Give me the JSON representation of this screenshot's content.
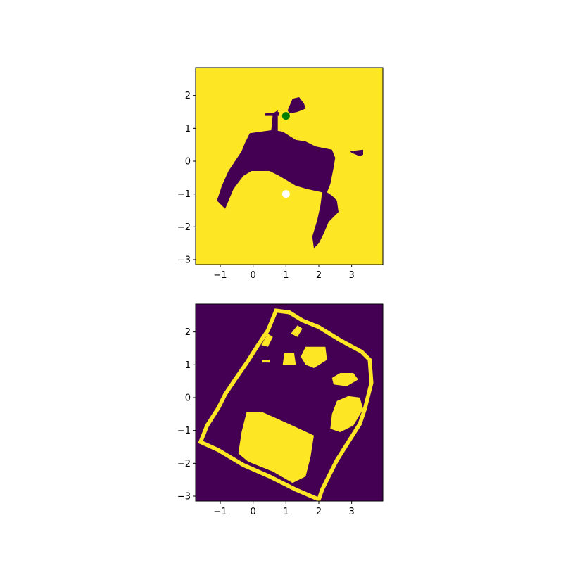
{
  "colors": {
    "viridis_low": "#440154",
    "viridis_high": "#fde725",
    "start_marker": "#ffffff",
    "goal_marker": "#008000",
    "axis": "#000000"
  },
  "chart_data": [
    {
      "type": "heatmap",
      "title": "",
      "xlabel": "",
      "ylabel": "",
      "xlim": [
        -1.75,
        3.95
      ],
      "ylim": [
        -3.15,
        2.85
      ],
      "xticks": [
        -1,
        0,
        1,
        2,
        3
      ],
      "yticks": [
        -3,
        -2,
        -1,
        0,
        1,
        2
      ],
      "xtick_labels": [
        "−1",
        "0",
        "1",
        "2",
        "3"
      ],
      "ytick_labels": [
        "−3",
        "−2",
        "−1",
        "0",
        "1",
        "2"
      ],
      "background_value": 1,
      "regions_value": 0,
      "regions": [
        [
          [
            -1.1,
            -1.2
          ],
          [
            -0.95,
            -0.75
          ],
          [
            -0.75,
            -0.3
          ],
          [
            -0.55,
            0.0
          ],
          [
            -0.35,
            0.3
          ],
          [
            -0.25,
            0.55
          ],
          [
            -0.1,
            0.85
          ],
          [
            0.6,
            0.95
          ],
          [
            0.9,
            0.9
          ],
          [
            1.3,
            0.65
          ],
          [
            1.6,
            0.6
          ],
          [
            1.9,
            0.45
          ],
          [
            2.4,
            0.35
          ],
          [
            2.5,
            0.1
          ],
          [
            2.45,
            -0.2
          ],
          [
            2.35,
            -0.7
          ],
          [
            2.25,
            -0.95
          ],
          [
            2.4,
            -1.05
          ],
          [
            2.55,
            -1.2
          ],
          [
            2.6,
            -1.55
          ],
          [
            2.3,
            -1.85
          ],
          [
            2.15,
            -2.2
          ],
          [
            2.0,
            -2.5
          ],
          [
            1.85,
            -2.65
          ],
          [
            1.8,
            -2.3
          ],
          [
            1.95,
            -1.8
          ],
          [
            2.05,
            -1.35
          ],
          [
            2.1,
            -0.95
          ],
          [
            1.65,
            -0.85
          ],
          [
            1.3,
            -0.75
          ],
          [
            1.05,
            -0.6
          ],
          [
            0.8,
            -0.45
          ],
          [
            0.5,
            -0.3
          ],
          [
            -0.05,
            -0.3
          ],
          [
            -0.3,
            -0.45
          ],
          [
            -0.6,
            -0.85
          ],
          [
            -0.85,
            -1.45
          ]
        ],
        [
          [
            0.55,
            0.9
          ],
          [
            0.6,
            1.45
          ],
          [
            0.75,
            1.55
          ],
          [
            0.75,
            0.9
          ]
        ],
        [
          [
            0.35,
            1.45
          ],
          [
            0.8,
            1.5
          ],
          [
            0.8,
            1.38
          ],
          [
            0.35,
            1.38
          ]
        ],
        [
          [
            1.05,
            1.55
          ],
          [
            1.2,
            1.9
          ],
          [
            1.4,
            1.95
          ],
          [
            1.55,
            1.75
          ],
          [
            1.6,
            1.6
          ],
          [
            1.35,
            1.5
          ],
          [
            1.1,
            1.45
          ]
        ],
        [
          [
            2.95,
            0.3
          ],
          [
            3.35,
            0.35
          ],
          [
            3.35,
            0.2
          ],
          [
            3.25,
            0.15
          ],
          [
            3.0,
            0.25
          ]
        ]
      ],
      "points": [
        {
          "x": 1.0,
          "y": -1.0,
          "color": "#ffffff"
        },
        {
          "x": 1.0,
          "y": 1.38,
          "color": "#008000"
        }
      ]
    },
    {
      "type": "heatmap",
      "title": "",
      "xlabel": "",
      "ylabel": "",
      "xlim": [
        -1.75,
        3.95
      ],
      "ylim": [
        -3.15,
        2.85
      ],
      "xticks": [
        -1,
        0,
        1,
        2,
        3
      ],
      "yticks": [
        -3,
        -2,
        -1,
        0,
        1,
        2
      ],
      "xtick_labels": [
        "−1",
        "0",
        "1",
        "2",
        "3"
      ],
      "ytick_labels": [
        "−3",
        "−2",
        "−1",
        "0",
        "1",
        "2"
      ],
      "background_value": 0,
      "regions_value": 1,
      "outline": {
        "points": [
          [
            0.7,
            2.65
          ],
          [
            1.1,
            2.6
          ],
          [
            1.5,
            2.35
          ],
          [
            2.0,
            2.15
          ],
          [
            2.65,
            1.75
          ],
          [
            3.3,
            1.4
          ],
          [
            3.55,
            1.15
          ],
          [
            3.6,
            0.45
          ],
          [
            3.4,
            -0.35
          ],
          [
            3.25,
            -0.8
          ],
          [
            2.9,
            -1.35
          ],
          [
            2.55,
            -1.9
          ],
          [
            2.3,
            -2.4
          ],
          [
            2.1,
            -2.8
          ],
          [
            2.0,
            -3.1
          ],
          [
            1.3,
            -2.8
          ],
          [
            0.5,
            -2.4
          ],
          [
            -0.3,
            -2.05
          ],
          [
            -1.05,
            -1.6
          ],
          [
            -1.6,
            -1.35
          ],
          [
            -1.4,
            -0.85
          ],
          [
            -1.05,
            -0.3
          ],
          [
            -0.85,
            0.1
          ],
          [
            -0.55,
            0.55
          ],
          [
            -0.2,
            1.05
          ],
          [
            0.15,
            1.6
          ],
          [
            0.45,
            2.05
          ],
          [
            0.7,
            2.65
          ]
        ],
        "width": 0.12
      },
      "regions": [
        [
          [
            -0.2,
            -0.45
          ],
          [
            0.3,
            -0.45
          ],
          [
            0.75,
            -0.65
          ],
          [
            1.2,
            -0.85
          ],
          [
            1.85,
            -1.15
          ],
          [
            1.75,
            -1.8
          ],
          [
            1.6,
            -2.4
          ],
          [
            1.2,
            -2.6
          ],
          [
            0.6,
            -2.25
          ],
          [
            -0.15,
            -1.95
          ],
          [
            -0.45,
            -1.7
          ],
          [
            -0.35,
            -1.05
          ]
        ],
        [
          [
            2.55,
            -0.1
          ],
          [
            2.9,
            0.05
          ],
          [
            3.25,
            0.0
          ],
          [
            3.35,
            -0.35
          ],
          [
            3.05,
            -0.85
          ],
          [
            2.65,
            -1.05
          ],
          [
            2.35,
            -0.95
          ],
          [
            2.4,
            -0.5
          ]
        ],
        [
          [
            2.4,
            0.6
          ],
          [
            2.65,
            0.75
          ],
          [
            3.05,
            0.75
          ],
          [
            3.2,
            0.55
          ],
          [
            2.85,
            0.35
          ],
          [
            2.45,
            0.4
          ]
        ],
        [
          [
            1.45,
            1.25
          ],
          [
            1.6,
            1.55
          ],
          [
            2.2,
            1.55
          ],
          [
            2.25,
            1.15
          ],
          [
            1.85,
            0.9
          ],
          [
            1.6,
            1.0
          ]
        ],
        [
          [
            0.9,
            1.0
          ],
          [
            0.95,
            1.35
          ],
          [
            1.25,
            1.35
          ],
          [
            1.3,
            1.0
          ]
        ],
        [
          [
            0.28,
            1.07
          ],
          [
            0.5,
            1.07
          ],
          [
            0.5,
            1.15
          ],
          [
            0.28,
            1.15
          ]
        ],
        [
          [
            1.15,
            1.95
          ],
          [
            1.35,
            2.2
          ],
          [
            1.5,
            2.1
          ],
          [
            1.35,
            1.85
          ]
        ],
        [
          [
            0.25,
            1.6
          ],
          [
            0.45,
            1.95
          ],
          [
            0.6,
            1.85
          ],
          [
            0.45,
            1.55
          ]
        ]
      ],
      "points": []
    }
  ]
}
